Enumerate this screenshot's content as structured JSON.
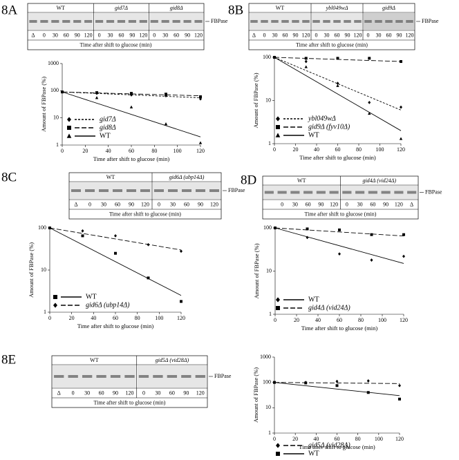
{
  "chart_data": [
    {
      "type": "line",
      "panel_label": "8A",
      "y_label": "Amount of FBPase (%)",
      "x_label": "Time after shift to glucose (min)",
      "x": [
        0,
        30,
        60,
        90,
        120
      ],
      "xlim": [
        0,
        120
      ],
      "xticks": [
        0,
        20,
        40,
        60,
        80,
        100,
        120
      ],
      "ylim": [
        1,
        1000
      ],
      "yticks": [
        1,
        10,
        100,
        1000
      ],
      "log_y": true,
      "color": "#000000",
      "series": [
        {
          "name": "gid7Δ",
          "marker": "diamond",
          "dash": "dashed",
          "values": [
            90,
            80,
            70,
            65,
            50
          ],
          "fit": [
            90,
            55
          ]
        },
        {
          "name": "gid8Δ",
          "marker": "square",
          "dash": "longdash",
          "values": [
            90,
            85,
            80,
            75,
            60
          ],
          "fit": [
            90,
            65
          ]
        },
        {
          "name": "WT",
          "marker": "triangle",
          "dash": "solid",
          "values": [
            90,
            55,
            25,
            6,
            1.2
          ],
          "fit": [
            90,
            2
          ]
        }
      ]
    },
    {
      "type": "line",
      "panel_label": "8B",
      "y_label": "Amount of FBPase (%)",
      "x_label": "Time after shift to glucose (min)",
      "x": [
        0,
        30,
        60,
        90,
        120
      ],
      "xlim": [
        0,
        120
      ],
      "xticks": [
        0,
        20,
        40,
        60,
        80,
        100,
        120
      ],
      "ylim": [
        1,
        100
      ],
      "yticks": [
        1,
        10,
        100
      ],
      "log_y": true,
      "color": "#000000",
      "series": [
        {
          "name": "ybl049wΔ",
          "marker": "diamond",
          "dash": "dashed",
          "values": [
            100,
            80,
            25,
            9,
            7
          ],
          "fit": [
            100,
            6
          ]
        },
        {
          "name": "gid9Δ (fyv10Δ)",
          "marker": "square",
          "dash": "longdash",
          "values": [
            100,
            95,
            95,
            95,
            80
          ],
          "fit": [
            100,
            80
          ]
        },
        {
          "name": "WT",
          "marker": "triangle",
          "dash": "solid",
          "values": [
            100,
            60,
            22,
            5,
            1.3
          ],
          "fit": [
            100,
            2
          ]
        }
      ]
    },
    {
      "type": "line",
      "panel_label": "8C",
      "y_label": "Amount of FBPase (%)",
      "x_label": "Time after shift to glucose (min)",
      "x": [
        0,
        30,
        60,
        90,
        120
      ],
      "xlim": [
        0,
        120
      ],
      "xticks": [
        0,
        20,
        40,
        60,
        80,
        100,
        120
      ],
      "ylim": [
        1,
        100
      ],
      "yticks": [
        1,
        10,
        100
      ],
      "log_y": true,
      "color": "#000000",
      "series": [
        {
          "name": "WT",
          "marker": "square",
          "dash": "solid",
          "values": [
            100,
            65,
            25,
            6.5,
            1.8
          ],
          "fit": [
            100,
            2.5
          ]
        },
        {
          "name": "gid6Δ (ubp14Δ)",
          "marker": "diamond",
          "dash": "longdash",
          "values": [
            100,
            85,
            65,
            40,
            28
          ],
          "fit": [
            100,
            30
          ]
        }
      ]
    },
    {
      "type": "line",
      "panel_label": "8D",
      "y_label": "Amount of FBPase (%)",
      "x_label": "Time after shift to glucose (min)",
      "x": [
        0,
        30,
        60,
        90,
        120
      ],
      "xlim": [
        0,
        120
      ],
      "xticks": [
        0,
        20,
        40,
        60,
        80,
        100,
        120
      ],
      "ylim": [
        1,
        100
      ],
      "yticks": [
        1,
        10,
        100
      ],
      "log_y": true,
      "color": "#000000",
      "series": [
        {
          "name": "WT",
          "marker": "diamond",
          "dash": "solid",
          "values": [
            100,
            60,
            25,
            18,
            22
          ],
          "fit": [
            100,
            15
          ]
        },
        {
          "name": "gid4Δ (vid24Δ)",
          "marker": "square",
          "dash": "longdash",
          "values": [
            100,
            95,
            90,
            70,
            70
          ],
          "fit": [
            100,
            65
          ]
        }
      ]
    },
    {
      "type": "line",
      "panel_label": "8E",
      "y_label": "Amount of FBPase (%)",
      "x_label": "Time after shift to glucose (min)",
      "x": [
        0,
        30,
        60,
        90,
        120
      ],
      "xlim": [
        0,
        120
      ],
      "xticks": [
        0,
        20,
        40,
        60,
        80,
        100,
        120
      ],
      "ylim": [
        1,
        1000
      ],
      "yticks": [
        1,
        10,
        100,
        1000
      ],
      "log_y": true,
      "color": "#000000",
      "series": [
        {
          "name": "gid5Δ (vid28Δ)",
          "marker": "diamond",
          "dash": "longdash",
          "values": [
            100,
            100,
            110,
            115,
            75
          ],
          "fit": [
            100,
            90
          ]
        },
        {
          "name": "WT",
          "marker": "square",
          "dash": "solid",
          "values": [
            100,
            95,
            75,
            40,
            22
          ],
          "fit": [
            100,
            30
          ]
        }
      ]
    }
  ],
  "blots": [
    {
      "band_label": "FBPase",
      "caption": "Time after shift to glucose (min)",
      "groups": [
        {
          "name": "WT",
          "lanes": [
            "Δ",
            "0",
            "30",
            "60",
            "90",
            "120"
          ]
        },
        {
          "name": "gid7Δ",
          "lanes": [
            "0",
            "30",
            "60",
            "90",
            "120"
          ]
        },
        {
          "name": "gid8Δ",
          "lanes": [
            "0",
            "30",
            "60",
            "90",
            "120"
          ]
        }
      ]
    },
    {
      "band_label": "FBPase",
      "caption": "Time after shift to glucose (min)",
      "groups": [
        {
          "name": "WT",
          "lanes": [
            "Δ",
            "0",
            "30",
            "60",
            "90",
            "120"
          ]
        },
        {
          "name": "ybl049wΔ",
          "lanes": [
            "0",
            "30",
            "60",
            "90",
            "120"
          ]
        },
        {
          "name": "gid9Δ",
          "lanes": [
            "0",
            "30",
            "60",
            "90",
            "120"
          ]
        }
      ]
    },
    {
      "band_label": "FBPase",
      "caption": "Time after shift to glucose (min)",
      "groups": [
        {
          "name": "WT",
          "lanes": [
            "Δ",
            "0",
            "30",
            "60",
            "90",
            "120"
          ]
        },
        {
          "name": "gid6Δ (ubp14Δ)",
          "lanes": [
            "0",
            "30",
            "60",
            "90",
            "120"
          ]
        }
      ]
    },
    {
      "band_label": "FBPase",
      "caption": "Time after shift to glucose (min)",
      "groups": [
        {
          "name": "WT",
          "lanes": [
            null,
            "0",
            "30",
            "60",
            "90",
            "120"
          ]
        },
        {
          "name": "gid4Δ (vid24Δ)",
          "lanes": [
            "0",
            "30",
            "60",
            "90",
            "120",
            "Δ"
          ]
        }
      ]
    },
    {
      "band_label": "FBPase",
      "caption": "Time after shift to glucose (min)",
      "groups": [
        {
          "name": "WT",
          "lanes": [
            "Δ",
            "0",
            "30",
            "60",
            "90",
            "120"
          ]
        },
        {
          "name": "gid5Δ (vid28Δ)",
          "lanes": [
            "0",
            "30",
            "60",
            "90",
            "120"
          ]
        }
      ]
    }
  ]
}
